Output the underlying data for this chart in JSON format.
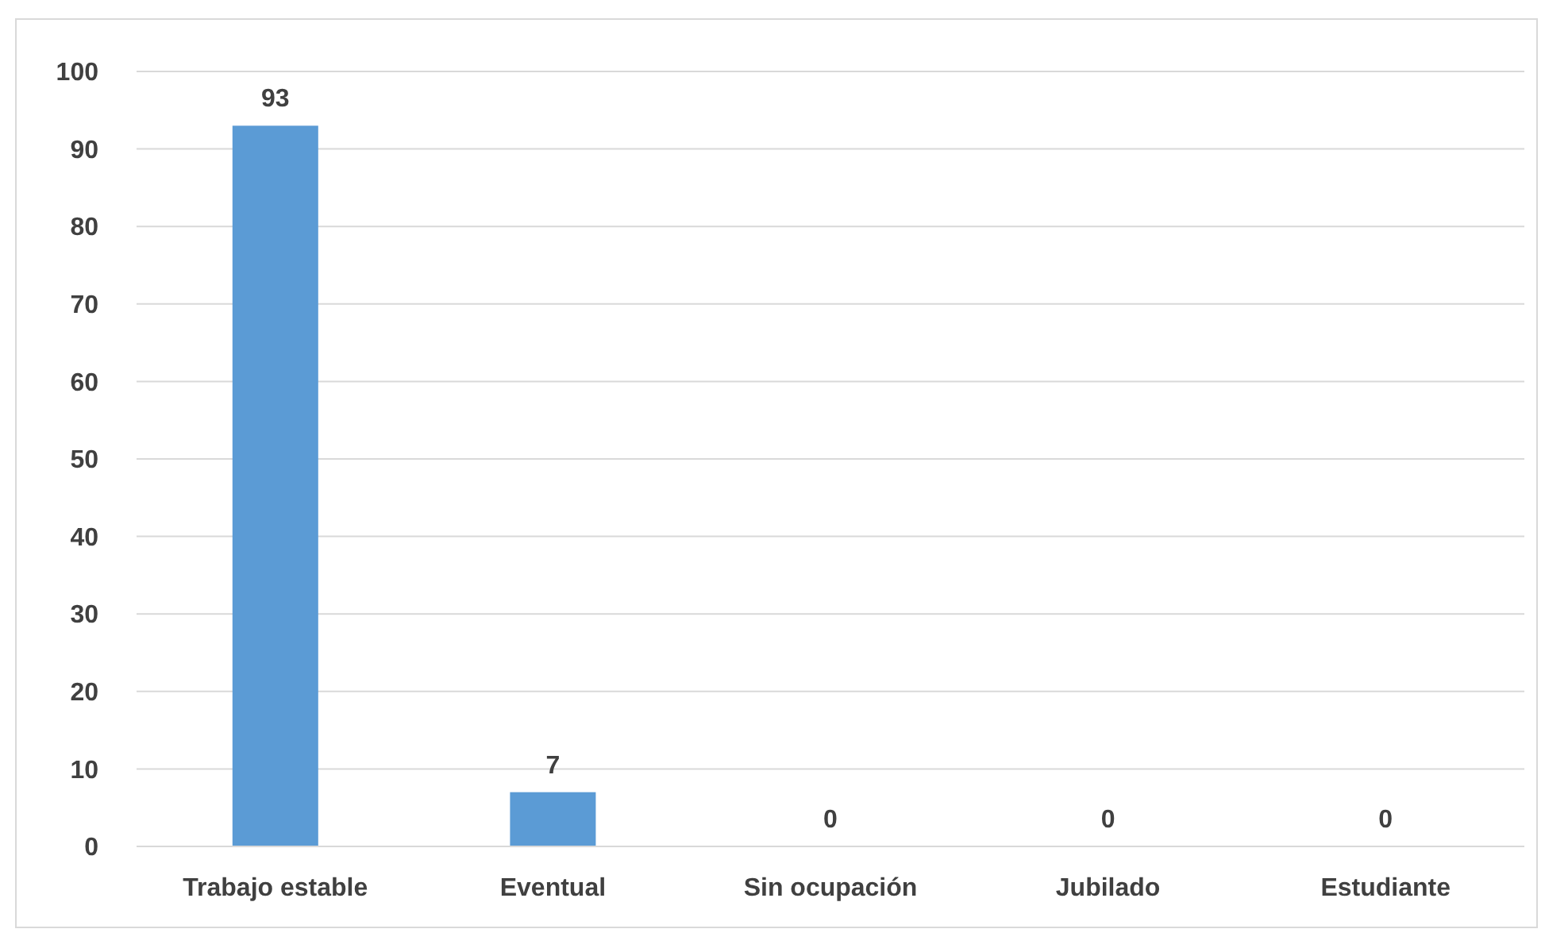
{
  "chart_data": {
    "type": "bar",
    "categories": [
      "Trabajo estable",
      "Eventual",
      "Sin ocupación",
      "Jubilado",
      "Estudiante"
    ],
    "values": [
      93,
      7,
      0,
      0,
      0
    ],
    "color": "#5b9bd5",
    "ylim": [
      0,
      100
    ],
    "yticks": [
      0,
      10,
      20,
      30,
      40,
      50,
      60,
      70,
      80,
      90,
      100
    ],
    "grid": "y",
    "data_labels": true
  }
}
